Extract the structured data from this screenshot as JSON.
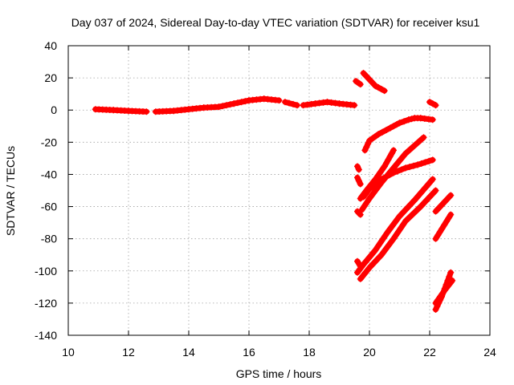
{
  "chart_data": {
    "type": "scatter",
    "title": "Day 037 of 2024, Sidereal Day-to-day VTEC variation (SDTVAR) for receiver ksu1",
    "xlabel": "GPS time / hours",
    "ylabel": "SDTVAR / TECUs",
    "xlim": [
      10,
      24
    ],
    "ylim": [
      -140,
      40
    ],
    "xticks": [
      10,
      12,
      14,
      16,
      18,
      20,
      22,
      24
    ],
    "yticks": [
      -140,
      -120,
      -100,
      -80,
      -60,
      -40,
      -20,
      0,
      20,
      40
    ],
    "grid": true,
    "marker": "plus",
    "color": "#ff0000",
    "series": [
      {
        "x": [
          10.9,
          11.5,
          12.0,
          12.6
        ],
        "y": [
          0.5,
          0,
          -0.5,
          -1
        ]
      },
      {
        "x": [
          12.9,
          13.5,
          14.0,
          14.5,
          15.0
        ],
        "y": [
          -1,
          -0.5,
          0.5,
          1.5,
          2
        ]
      },
      {
        "x": [
          15.0,
          15.5,
          16.0,
          16.5,
          17.0
        ],
        "y": [
          2,
          4,
          6,
          7,
          6
        ]
      },
      {
        "x": [
          17.2,
          17.6
        ],
        "y": [
          5,
          3
        ]
      },
      {
        "x": [
          17.8,
          18.2,
          18.6,
          19.0,
          19.5
        ],
        "y": [
          3,
          4,
          5,
          4,
          3
        ]
      },
      {
        "x": [
          19.55,
          19.7
        ],
        "y": [
          18,
          16
        ]
      },
      {
        "x": [
          19.8,
          20.0,
          20.2,
          20.5
        ],
        "y": [
          23,
          19,
          15,
          12
        ]
      },
      {
        "x": [
          22.0,
          22.2
        ],
        "y": [
          5,
          3
        ]
      },
      {
        "x": [
          19.85,
          20.0,
          20.3,
          20.7,
          21.0,
          21.3,
          21.5,
          21.7,
          22.1
        ],
        "y": [
          -25,
          -19,
          -15,
          -11,
          -8,
          -6,
          -5,
          -5,
          -6
        ]
      },
      {
        "x": [
          19.6,
          19.65
        ],
        "y": [
          -35,
          -37
        ]
      },
      {
        "x": [
          19.6,
          19.7
        ],
        "y": [
          -42,
          -46
        ]
      },
      {
        "x": [
          19.6,
          19.7
        ],
        "y": [
          -63,
          -65
        ]
      },
      {
        "x": [
          19.7,
          19.9,
          20.2,
          20.5,
          20.8
        ],
        "y": [
          -55,
          -50,
          -43,
          -35,
          -25
        ]
      },
      {
        "x": [
          19.75,
          20.0,
          20.4,
          20.8,
          21.2,
          21.8
        ],
        "y": [
          -62,
          -55,
          -45,
          -36,
          -27,
          -17
        ]
      },
      {
        "x": [
          19.8,
          20.0,
          20.4,
          20.8,
          21.2,
          21.6,
          22.1
        ],
        "y": [
          -54,
          -49,
          -43,
          -39,
          -36,
          -34,
          -31
        ]
      },
      {
        "x": [
          19.6,
          19.7
        ],
        "y": [
          -94,
          -97
        ]
      },
      {
        "x": [
          19.6,
          19.8,
          20.2,
          20.6,
          21.0,
          21.5,
          22.1
        ],
        "y": [
          -101,
          -96,
          -87,
          -76,
          -66,
          -56,
          -43
        ]
      },
      {
        "x": [
          19.7,
          20.0,
          20.4,
          20.8,
          21.2,
          21.7,
          22.2
        ],
        "y": [
          -105,
          -98,
          -90,
          -80,
          -69,
          -60,
          -50
        ]
      },
      {
        "x": [
          22.2,
          22.7
        ],
        "y": [
          -63,
          -53
        ]
      },
      {
        "x": [
          22.2,
          22.7
        ],
        "y": [
          -80,
          -65
        ]
      },
      {
        "x": [
          22.2,
          22.4,
          22.7
        ],
        "y": [
          -124,
          -116,
          -101
        ]
      },
      {
        "x": [
          22.2,
          22.5,
          22.75
        ],
        "y": [
          -120,
          -112,
          -106
        ]
      }
    ]
  }
}
